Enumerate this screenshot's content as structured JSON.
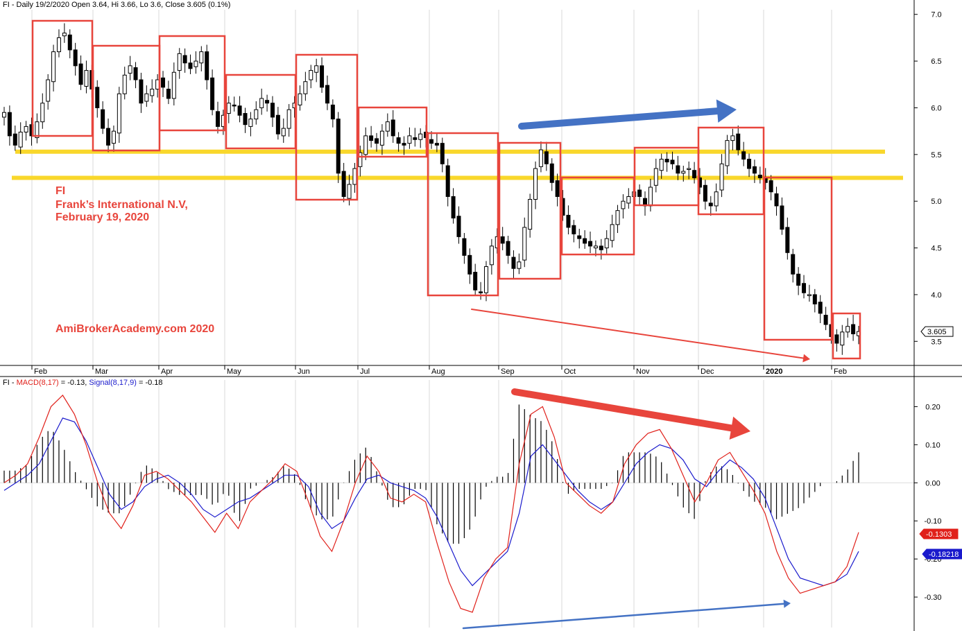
{
  "header": {
    "price": "FI - Daily 19/2/2020 Open 3.64, Hi 3.66, Lo 3.6, Close 3.605 (0.1%)",
    "macd_prefix": "FI - ",
    "macd_label": "MACD(8,17)",
    "macd_value": " = -0.13, ",
    "signal_label": "Signal(8,17,9)",
    "signal_value": " = -0.18"
  },
  "annotation": {
    "ticker": "FI",
    "company": "Frank’s International N.V,",
    "date": "February 19, 2020",
    "watermark": "AmiBrokerAcademy.com  2020"
  },
  "colors": {
    "box": "#e8453c",
    "support": "#f9d72b",
    "up_arrow": "#4472c4",
    "macd": "#e0201a",
    "signal": "#1a1acc",
    "candle": "#000000"
  },
  "chart_data": [
    {
      "type": "candlestick",
      "panel": "price",
      "ylim": [
        3.22,
        7.05
      ],
      "yticks": [
        3.5,
        4.0,
        4.5,
        5.0,
        5.5,
        6.0,
        6.5,
        7.0
      ],
      "ytick_labels": [
        "3.5",
        "4.0",
        "4.5",
        "5.0",
        "5.5",
        "6.0",
        "6.5",
        "7.0"
      ],
      "months": [
        "Feb",
        "Mar",
        "Apr",
        "May",
        "Jun",
        "Jul",
        "Aug",
        "Sep",
        "Oct",
        "Nov",
        "Dec",
        "2020",
        "Feb"
      ],
      "last_price_label": "3.605",
      "support_levels": [
        5.53,
        5.25
      ],
      "close": [
        5.95,
        5.7,
        5.6,
        5.74,
        5.8,
        5.7,
        5.85,
        6.05,
        6.3,
        6.6,
        6.75,
        6.8,
        6.62,
        6.45,
        6.25,
        6.4,
        6.2,
        6.0,
        5.78,
        5.6,
        5.75,
        6.15,
        6.35,
        6.45,
        6.3,
        6.05,
        6.15,
        6.2,
        6.3,
        6.22,
        6.1,
        6.38,
        6.58,
        6.48,
        6.42,
        6.5,
        6.6,
        6.3,
        5.98,
        5.8,
        5.92,
        6.05,
        6.02,
        5.92,
        5.82,
        5.88,
        5.98,
        6.1,
        6.05,
        5.9,
        5.72,
        5.78,
        5.98,
        6.05,
        6.15,
        6.28,
        6.4,
        6.45,
        6.22,
        6.05,
        5.88,
        5.3,
        5.05,
        5.18,
        5.35,
        5.52,
        5.7,
        5.65,
        5.62,
        5.75,
        5.85,
        5.7,
        5.62,
        5.6,
        5.7,
        5.66,
        5.72,
        5.68,
        5.62,
        5.6,
        5.4,
        5.05,
        4.82,
        4.62,
        4.42,
        4.22,
        4.05,
        4.02,
        4.3,
        4.52,
        4.62,
        4.55,
        4.42,
        4.28,
        4.35,
        4.72,
        5.02,
        5.35,
        5.55,
        5.4,
        5.2,
        5.05,
        4.85,
        4.72,
        4.65,
        4.6,
        4.55,
        4.52,
        4.52,
        4.48,
        4.6,
        4.75,
        4.9,
        5.0,
        5.05,
        5.1,
        5.05,
        4.95,
        5.15,
        5.35,
        5.45,
        5.42,
        5.4,
        5.3,
        5.32,
        5.35,
        5.25,
        5.15,
        5.0,
        4.95,
        5.1,
        5.4,
        5.65,
        5.7,
        5.55,
        5.45,
        5.35,
        5.3,
        5.25,
        5.2,
        5.1,
        4.95,
        4.7,
        4.45,
        4.22,
        4.1,
        4.02,
        4.0,
        3.9,
        3.8,
        3.68,
        3.55,
        3.48,
        3.6,
        3.66,
        3.58,
        3.605
      ],
      "approximate": true
    },
    {
      "type": "line",
      "panel": "macd",
      "ylim": [
        -0.38,
        0.27
      ],
      "yticks": [
        0.2,
        0.1,
        0.0,
        -0.1,
        -0.2,
        -0.3
      ],
      "ytick_labels": [
        "0.20",
        "0.10",
        "0.00",
        "-0.10",
        "-0.20",
        "-0.30"
      ],
      "macd_badge": "-0.1303",
      "signal_badge": "-0.18218",
      "series": [
        {
          "name": "MACD(8,17)",
          "values": [
            0.0,
            0.02,
            0.05,
            0.12,
            0.2,
            0.23,
            0.18,
            0.1,
            0.0,
            -0.08,
            -0.12,
            -0.06,
            0.02,
            0.03,
            0.01,
            -0.02,
            -0.05,
            -0.09,
            -0.13,
            -0.08,
            -0.12,
            -0.05,
            -0.02,
            0.01,
            0.05,
            0.03,
            -0.05,
            -0.14,
            -0.18,
            -0.1,
            0.0,
            0.07,
            0.03,
            -0.04,
            -0.05,
            -0.03,
            -0.05,
            -0.16,
            -0.26,
            -0.33,
            -0.34,
            -0.25,
            -0.2,
            -0.17,
            0.05,
            0.18,
            0.2,
            0.12,
            0.0,
            -0.03,
            -0.06,
            -0.08,
            -0.05,
            0.05,
            0.1,
            0.13,
            0.14,
            0.09,
            0.02,
            -0.05,
            0.0,
            0.06,
            0.08,
            0.03,
            -0.02,
            -0.08,
            -0.18,
            -0.25,
            -0.29,
            -0.28,
            -0.27,
            -0.26,
            -0.22,
            -0.13
          ]
        },
        {
          "name": "Signal(8,17,9)",
          "values": [
            -0.02,
            0.0,
            0.02,
            0.05,
            0.11,
            0.17,
            0.16,
            0.11,
            0.04,
            -0.03,
            -0.07,
            -0.05,
            -0.01,
            0.01,
            0.02,
            0.0,
            -0.03,
            -0.07,
            -0.09,
            -0.07,
            -0.05,
            -0.04,
            -0.02,
            0.0,
            0.02,
            0.02,
            -0.01,
            -0.08,
            -0.12,
            -0.1,
            -0.04,
            0.01,
            0.02,
            0.0,
            -0.01,
            -0.02,
            -0.04,
            -0.09,
            -0.16,
            -0.23,
            -0.27,
            -0.24,
            -0.21,
            -0.18,
            -0.08,
            0.07,
            0.1,
            0.06,
            0.02,
            -0.02,
            -0.05,
            -0.07,
            -0.05,
            0.0,
            0.05,
            0.08,
            0.1,
            0.09,
            0.06,
            0.01,
            -0.01,
            0.03,
            0.06,
            0.04,
            0.01,
            -0.04,
            -0.12,
            -0.2,
            -0.25,
            -0.26,
            -0.27,
            -0.26,
            -0.24,
            -0.18
          ]
        }
      ],
      "approximate": true
    }
  ]
}
